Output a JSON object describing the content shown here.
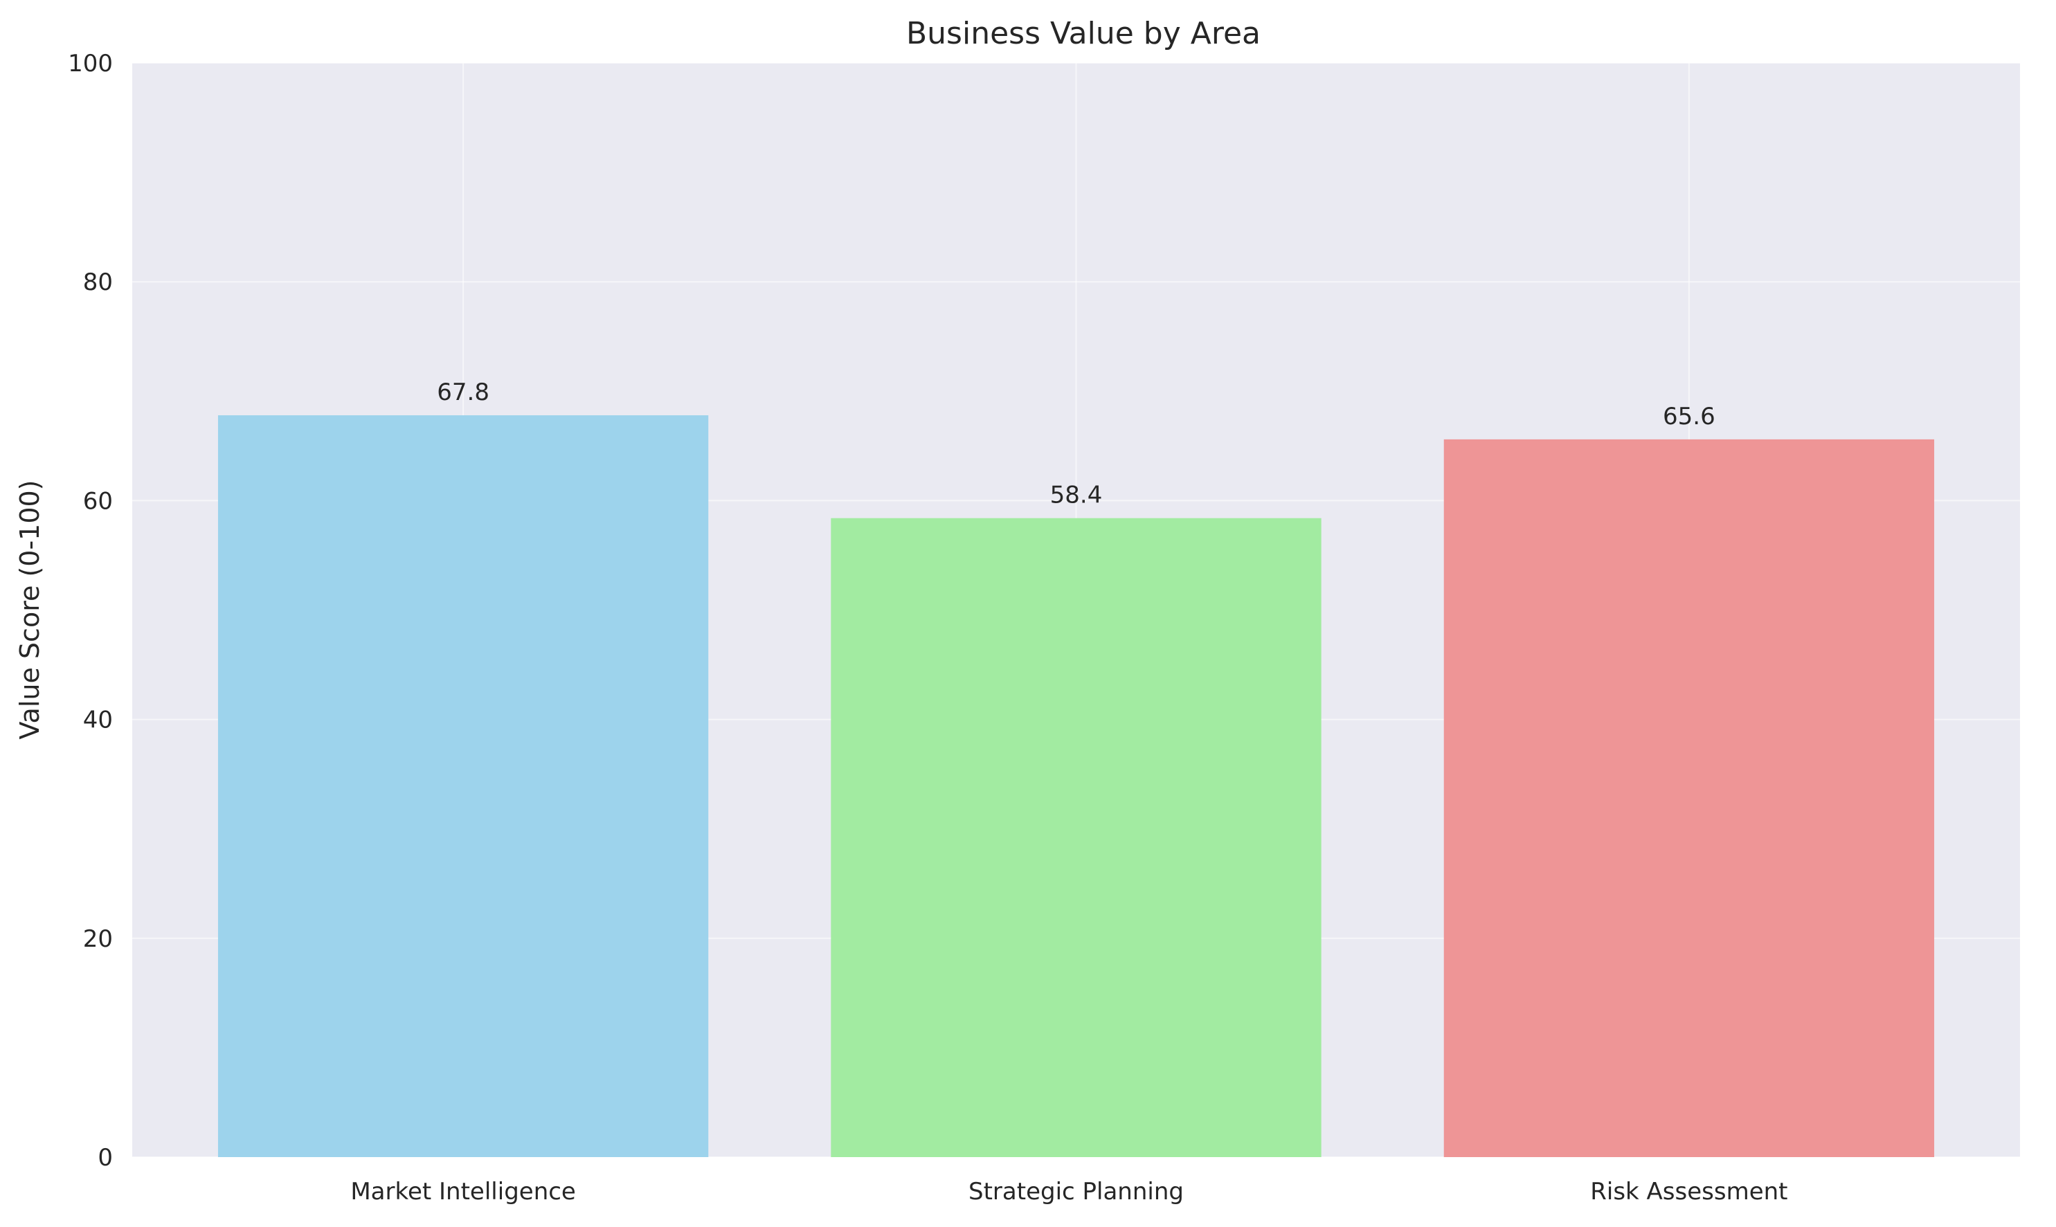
{
  "chart_data": {
    "type": "bar",
    "title": "Business Value by Area",
    "xlabel": "",
    "ylabel": "Value Score (0-100)",
    "ylim": [
      0,
      100
    ],
    "yticks": [
      0,
      20,
      40,
      60,
      80,
      100
    ],
    "categories": [
      "Market Intelligence",
      "Strategic Planning",
      "Risk Assessment"
    ],
    "values": [
      67.8,
      58.4,
      65.6
    ],
    "value_labels": [
      "67.8",
      "58.4",
      "65.6"
    ],
    "colors": [
      "#9DD3EC",
      "#A2EBA1",
      "#EE9596"
    ],
    "plot_background": "#EAEAF2",
    "grid": true,
    "legend": false
  }
}
